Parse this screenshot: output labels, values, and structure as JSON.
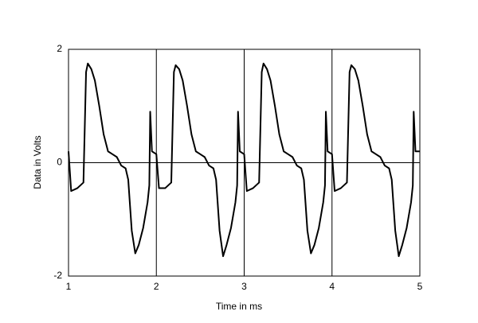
{
  "chart_data": {
    "type": "line",
    "xlabel": "Time in ms",
    "ylabel": "Data in Volts",
    "xlim": [
      1,
      5
    ],
    "xticks": [
      1,
      2,
      3,
      4,
      5
    ],
    "ylim": [
      -2,
      2
    ],
    "yticks": [
      2,
      0,
      -2
    ],
    "grid": true,
    "x": [
      1.0,
      1.03,
      1.1,
      1.17,
      1.2,
      1.22,
      1.26,
      1.3,
      1.35,
      1.4,
      1.45,
      1.5,
      1.55,
      1.6,
      1.65,
      1.68,
      1.72,
      1.76,
      1.8,
      1.85,
      1.9,
      1.92,
      1.93,
      1.95,
      2.0,
      2.03,
      2.1,
      2.17,
      2.2,
      2.22,
      2.26,
      2.3,
      2.35,
      2.4,
      2.45,
      2.5,
      2.55,
      2.6,
      2.65,
      2.68,
      2.72,
      2.76,
      2.8,
      2.85,
      2.9,
      2.92,
      2.93,
      2.95,
      3.0,
      3.03,
      3.1,
      3.17,
      3.2,
      3.22,
      3.26,
      3.3,
      3.35,
      3.4,
      3.45,
      3.5,
      3.55,
      3.6,
      3.65,
      3.68,
      3.72,
      3.76,
      3.8,
      3.85,
      3.9,
      3.92,
      3.93,
      3.95,
      4.0,
      4.03,
      4.1,
      4.17,
      4.2,
      4.22,
      4.26,
      4.3,
      4.35,
      4.4,
      4.45,
      4.5,
      4.55,
      4.6,
      4.65,
      4.68,
      4.72,
      4.76,
      4.8,
      4.85,
      4.9,
      4.92,
      4.93,
      4.95,
      5.0
    ],
    "series": [
      {
        "color": "#000000",
        "values": [
          0.2,
          -0.5,
          -0.45,
          -0.35,
          1.6,
          1.75,
          1.65,
          1.45,
          1.0,
          0.5,
          0.2,
          0.15,
          0.1,
          -0.05,
          -0.1,
          -0.3,
          -1.2,
          -1.6,
          -1.45,
          -1.15,
          -0.7,
          -0.4,
          0.9,
          0.2,
          0.15,
          -0.45,
          -0.45,
          -0.35,
          1.6,
          1.72,
          1.65,
          1.45,
          1.0,
          0.5,
          0.2,
          0.15,
          0.1,
          -0.05,
          -0.1,
          -0.3,
          -1.2,
          -1.65,
          -1.45,
          -1.15,
          -0.7,
          -0.4,
          0.9,
          0.2,
          0.15,
          -0.5,
          -0.45,
          -0.35,
          1.6,
          1.75,
          1.65,
          1.45,
          1.0,
          0.5,
          0.2,
          0.15,
          0.1,
          -0.05,
          -0.1,
          -0.3,
          -1.2,
          -1.6,
          -1.45,
          -1.15,
          -0.7,
          -0.4,
          0.9,
          0.2,
          0.15,
          -0.5,
          -0.45,
          -0.35,
          1.6,
          1.72,
          1.65,
          1.45,
          1.0,
          0.5,
          0.2,
          0.15,
          0.1,
          -0.05,
          -0.1,
          -0.3,
          -1.2,
          -1.65,
          -1.45,
          -1.15,
          -0.7,
          -0.4,
          0.9,
          0.2,
          0.2
        ]
      }
    ]
  }
}
